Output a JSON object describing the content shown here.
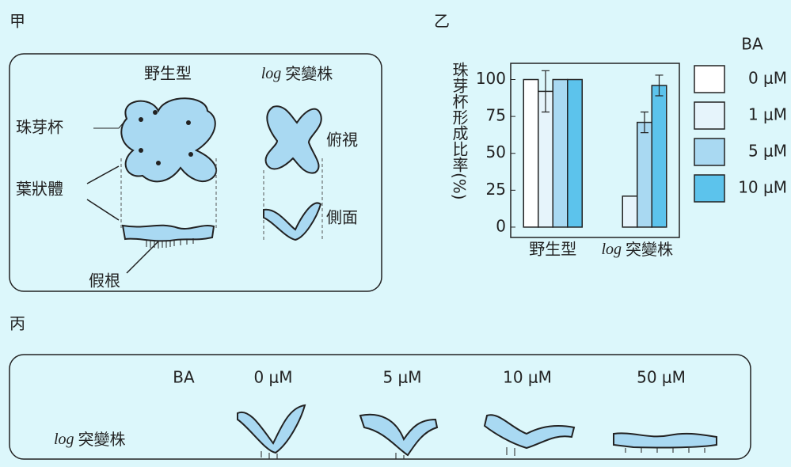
{
  "panel_labels": [
    "甲",
    "乙",
    "丙"
  ],
  "panel_a": {
    "columns": [
      "野生型",
      "log 突變株"
    ],
    "cup": "珠芽杯",
    "thallus": "葉狀體",
    "rhizoid": "假根",
    "top_view": "俯視",
    "side_view": "側面"
  },
  "chart_data": {
    "type": "bar",
    "y_label": "珠芽杯形成比率(%)",
    "legend_title": "BA",
    "categories": [
      "野生型",
      "log 突變株"
    ],
    "series": [
      {
        "name": "0 μM",
        "color": "#ffffff",
        "values": [
          100,
          0
        ],
        "errors": [
          null,
          null
        ]
      },
      {
        "name": "1 μM",
        "color": "#e6f4fb",
        "values": [
          92,
          21
        ],
        "errors": [
          14,
          null
        ]
      },
      {
        "name": "5 μM",
        "color": "#a9d9f2",
        "values": [
          100,
          71
        ],
        "errors": [
          null,
          7
        ]
      },
      {
        "name": "10 μM",
        "color": "#5cc3ec",
        "values": [
          100,
          96
        ],
        "errors": [
          null,
          7
        ]
      }
    ],
    "ylim": [
      -7,
      111
    ],
    "yticks": [
      0,
      25,
      50,
      75,
      100
    ]
  },
  "panel_c": {
    "legend_title": "BA",
    "concentrations": [
      "0 μM",
      "5 μM",
      "10 μM",
      "50 μM"
    ],
    "row_label": "log 突變株"
  }
}
